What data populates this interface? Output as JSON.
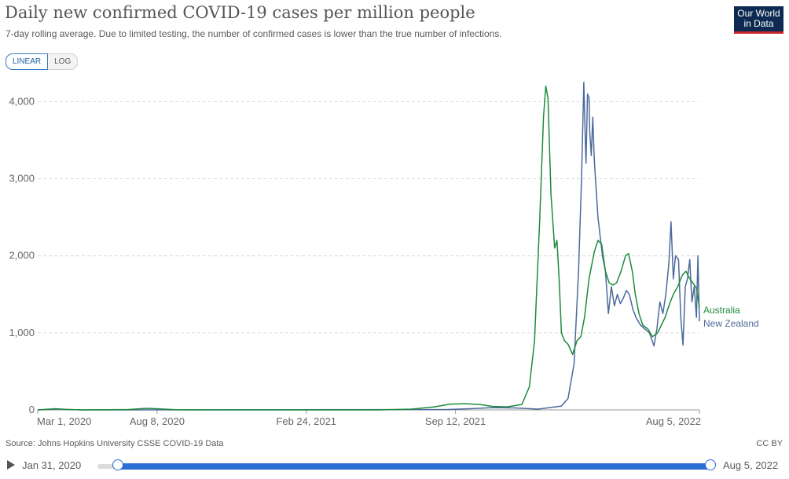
{
  "header": {
    "title": "Daily new confirmed COVID-19 cases per million people",
    "subtitle": "7-day rolling average. Due to limited testing, the number of confirmed cases is lower than the true number of infections.",
    "logo_line1": "Our World",
    "logo_line2": "in Data"
  },
  "scale_toggle": {
    "linear_label": "LINEAR",
    "log_label": "LOG",
    "selected": "LINEAR"
  },
  "footer": {
    "source": "Source: Johns Hopkins University CSSE COVID-19 Data",
    "license": "CC BY"
  },
  "timeline": {
    "start_label": "Jan 31, 2020",
    "end_label": "Aug 5, 2022",
    "play_icon": "play-icon"
  },
  "colors": {
    "australia": "#1e8b3c",
    "new_zealand": "#4c6a9c",
    "accent": "#2a6ed4"
  },
  "chart_data": {
    "type": "line",
    "title": "Daily new confirmed COVID-19 cases per million people",
    "ylim": [
      0,
      4300
    ],
    "yticks": [
      0,
      1000,
      2000,
      3000,
      4000
    ],
    "ytick_labels": [
      "0",
      "1,000",
      "2,000",
      "3,000",
      "4,000"
    ],
    "xlim": [
      "2020-03-01",
      "2022-08-05"
    ],
    "xticks": [
      "2020-03-01",
      "2020-08-08",
      "2021-02-24",
      "2021-09-12",
      "2022-08-05"
    ],
    "xtick_labels": [
      "Mar 1, 2020",
      "Aug 8, 2020",
      "Feb 24, 2021",
      "Sep 12, 2021",
      "Aug 5, 2022"
    ],
    "grid": "horizontal dashed",
    "legend_placement": "right inline labels",
    "series": [
      {
        "name": "Australia",
        "color": "#1e8b3c",
        "points": [
          [
            "2020-03-01",
            0
          ],
          [
            "2020-03-25",
            15
          ],
          [
            "2020-04-10",
            5
          ],
          [
            "2020-05-01",
            0
          ],
          [
            "2020-07-01",
            5
          ],
          [
            "2020-07-25",
            20
          ],
          [
            "2020-08-08",
            15
          ],
          [
            "2020-09-01",
            3
          ],
          [
            "2020-10-01",
            0
          ],
          [
            "2021-06-01",
            0
          ],
          [
            "2021-07-15",
            10
          ],
          [
            "2021-08-15",
            40
          ],
          [
            "2021-09-05",
            75
          ],
          [
            "2021-09-25",
            80
          ],
          [
            "2021-10-15",
            70
          ],
          [
            "2021-11-01",
            45
          ],
          [
            "2021-11-20",
            40
          ],
          [
            "2021-12-10",
            70
          ],
          [
            "2021-12-20",
            300
          ],
          [
            "2021-12-27",
            900
          ],
          [
            "2022-01-03",
            2500
          ],
          [
            "2022-01-08",
            3800
          ],
          [
            "2022-01-11",
            4200
          ],
          [
            "2022-01-14",
            4050
          ],
          [
            "2022-01-18",
            2800
          ],
          [
            "2022-01-23",
            2100
          ],
          [
            "2022-01-26",
            2200
          ],
          [
            "2022-01-29",
            1700
          ],
          [
            "2022-02-01",
            1000
          ],
          [
            "2022-02-05",
            900
          ],
          [
            "2022-02-10",
            850
          ],
          [
            "2022-02-16",
            720
          ],
          [
            "2022-02-22",
            900
          ],
          [
            "2022-02-27",
            950
          ],
          [
            "2022-03-04",
            1200
          ],
          [
            "2022-03-10",
            1700
          ],
          [
            "2022-03-17",
            2050
          ],
          [
            "2022-03-22",
            2200
          ],
          [
            "2022-03-27",
            2150
          ],
          [
            "2022-04-01",
            1800
          ],
          [
            "2022-04-06",
            1650
          ],
          [
            "2022-04-11",
            1620
          ],
          [
            "2022-04-16",
            1650
          ],
          [
            "2022-04-22",
            1800
          ],
          [
            "2022-04-28",
            2000
          ],
          [
            "2022-05-02",
            2030
          ],
          [
            "2022-05-07",
            1800
          ],
          [
            "2022-05-11",
            1500
          ],
          [
            "2022-05-16",
            1250
          ],
          [
            "2022-05-21",
            1100
          ],
          [
            "2022-05-28",
            1050
          ],
          [
            "2022-06-03",
            950
          ],
          [
            "2022-06-10",
            1000
          ],
          [
            "2022-06-15",
            1100
          ],
          [
            "2022-06-20",
            1200
          ],
          [
            "2022-06-25",
            1350
          ],
          [
            "2022-07-01",
            1500
          ],
          [
            "2022-07-07",
            1600
          ],
          [
            "2022-07-13",
            1750
          ],
          [
            "2022-07-18",
            1800
          ],
          [
            "2022-07-22",
            1720
          ],
          [
            "2022-07-27",
            1650
          ],
          [
            "2022-08-01",
            1580
          ],
          [
            "2022-08-05",
            1330
          ]
        ]
      },
      {
        "name": "New Zealand",
        "color": "#4c6a9c",
        "points": [
          [
            "2020-03-01",
            0
          ],
          [
            "2020-03-28",
            10
          ],
          [
            "2020-04-10",
            5
          ],
          [
            "2020-05-01",
            0
          ],
          [
            "2021-09-01",
            5
          ],
          [
            "2021-10-01",
            15
          ],
          [
            "2021-11-01",
            30
          ],
          [
            "2021-12-01",
            25
          ],
          [
            "2022-01-01",
            10
          ],
          [
            "2022-02-01",
            50
          ],
          [
            "2022-02-10",
            150
          ],
          [
            "2022-02-18",
            600
          ],
          [
            "2022-02-24",
            1800
          ],
          [
            "2022-02-28",
            3000
          ],
          [
            "2022-03-03",
            4250
          ],
          [
            "2022-03-05",
            3500
          ],
          [
            "2022-03-06",
            3200
          ],
          [
            "2022-03-08",
            4100
          ],
          [
            "2022-03-10",
            4050
          ],
          [
            "2022-03-11",
            3600
          ],
          [
            "2022-03-13",
            3300
          ],
          [
            "2022-03-15",
            3800
          ],
          [
            "2022-03-17",
            3250
          ],
          [
            "2022-03-22",
            2500
          ],
          [
            "2022-03-28",
            2000
          ],
          [
            "2022-04-01",
            1800
          ],
          [
            "2022-04-05",
            1250
          ],
          [
            "2022-04-09",
            1600
          ],
          [
            "2022-04-13",
            1350
          ],
          [
            "2022-04-17",
            1500
          ],
          [
            "2022-04-21",
            1380
          ],
          [
            "2022-04-25",
            1450
          ],
          [
            "2022-04-29",
            1550
          ],
          [
            "2022-05-03",
            1500
          ],
          [
            "2022-05-08",
            1300
          ],
          [
            "2022-05-12",
            1200
          ],
          [
            "2022-05-18",
            1100
          ],
          [
            "2022-05-24",
            1050
          ],
          [
            "2022-05-30",
            1000
          ],
          [
            "2022-06-05",
            830
          ],
          [
            "2022-06-09",
            1050
          ],
          [
            "2022-06-13",
            1400
          ],
          [
            "2022-06-17",
            1250
          ],
          [
            "2022-06-21",
            1500
          ],
          [
            "2022-06-25",
            1900
          ],
          [
            "2022-06-28",
            2440
          ],
          [
            "2022-07-01",
            1700
          ],
          [
            "2022-07-04",
            2000
          ],
          [
            "2022-07-08",
            1950
          ],
          [
            "2022-07-11",
            1200
          ],
          [
            "2022-07-14",
            840
          ],
          [
            "2022-07-17",
            1600
          ],
          [
            "2022-07-20",
            1700
          ],
          [
            "2022-07-23",
            1950
          ],
          [
            "2022-07-26",
            1400
          ],
          [
            "2022-07-29",
            1600
          ],
          [
            "2022-08-01",
            1200
          ],
          [
            "2022-08-03",
            2000
          ],
          [
            "2022-08-05",
            1150
          ]
        ]
      }
    ]
  }
}
